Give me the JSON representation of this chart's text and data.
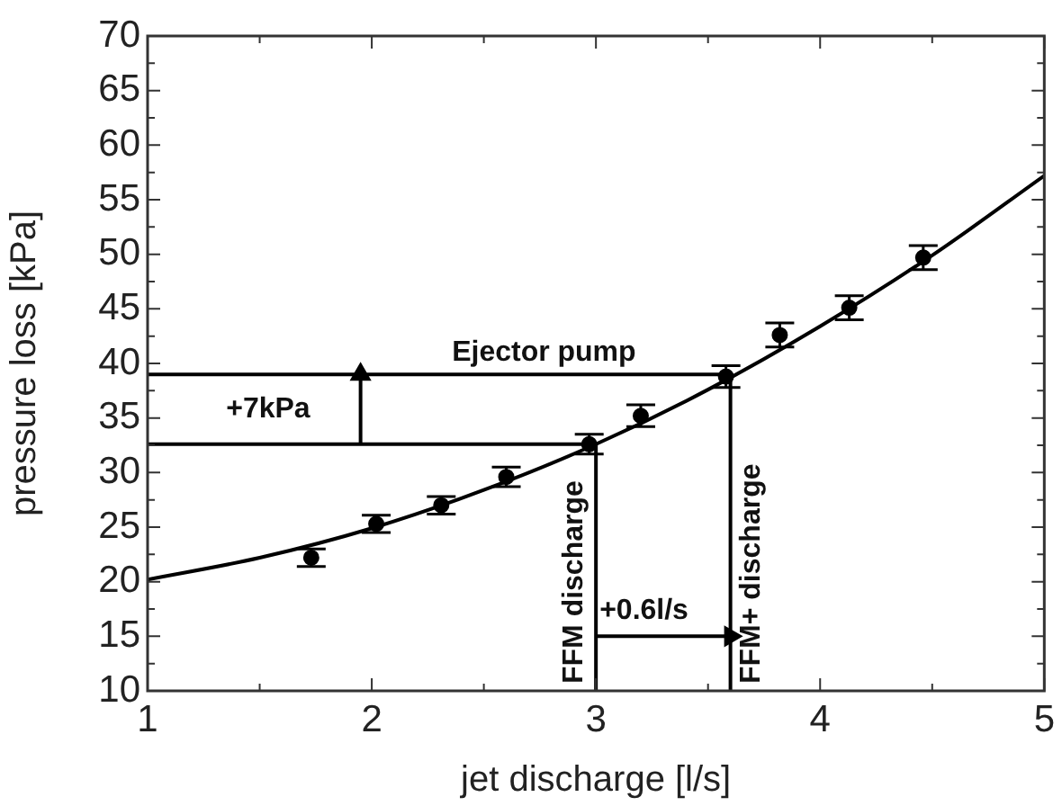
{
  "chart_data": {
    "type": "scatter",
    "xlabel": "jet discharge [l/s]",
    "ylabel": "pressure loss [kPa]",
    "xlim": [
      1,
      5
    ],
    "ylim": [
      10,
      70
    ],
    "xticks": [
      1,
      {
        "value": 1.5,
        "label": null
      },
      2,
      {
        "value": 2.5,
        "label": null
      },
      3,
      {
        "value": 3.5,
        "label": null
      },
      4,
      {
        "value": 4.5,
        "label": null
      },
      5
    ],
    "yticks": [
      10,
      {
        "value": 12.5,
        "label": null
      },
      15,
      {
        "value": 17.5,
        "label": null
      },
      20,
      {
        "value": 22.5,
        "label": null
      },
      25,
      {
        "value": 27.5,
        "label": null
      },
      30,
      {
        "value": 32.5,
        "label": null
      },
      35,
      {
        "value": 37.5,
        "label": null
      },
      40,
      {
        "value": 42.5,
        "label": null
      },
      45,
      {
        "value": 47.5,
        "label": null
      },
      50,
      {
        "value": 52.5,
        "label": null
      },
      55,
      {
        "value": 57.5,
        "label": null
      },
      60,
      {
        "value": 62.5,
        "label": null
      },
      65,
      {
        "value": 67.5,
        "label": null
      },
      70
    ],
    "grid": false,
    "legend": false,
    "series": [
      {
        "color": "#000000",
        "marker": "circle",
        "x": [
          1.73,
          2.02,
          2.31,
          2.6,
          2.97,
          3.2,
          3.58,
          3.82,
          4.13,
          4.46
        ],
        "values": [
          22.2,
          25.3,
          27.0,
          29.6,
          32.6,
          35.2,
          38.8,
          42.6,
          45.1,
          49.7
        ],
        "errors": [
          0.8,
          0.8,
          0.8,
          0.9,
          0.9,
          1.0,
          1.0,
          1.1,
          1.1,
          1.1
        ]
      },
      {
        "type": "line",
        "color": "#000000",
        "marker": "none",
        "x": [
          1,
          1.5,
          2,
          2.5,
          3,
          3.5,
          4,
          4.5,
          5
        ],
        "values": [
          20.2,
          22.2,
          24.9,
          28.4,
          32.6,
          37.6,
          43.4,
          49.9,
          57.2
        ]
      },
      {
        "type": "line",
        "color": "#000000",
        "marker": "none",
        "name": "Ejector pump",
        "x": [
          1,
          3.6
        ],
        "values": [
          39,
          39
        ]
      },
      {
        "type": "line",
        "color": "#000000",
        "marker": "none",
        "x": [
          1,
          3
        ],
        "values": [
          32.6,
          32.6
        ]
      },
      {
        "type": "line",
        "color": "#000000",
        "marker": "none",
        "name": "FFM discharge",
        "x": [
          3,
          3
        ],
        "values": [
          10,
          32.6
        ]
      },
      {
        "type": "line",
        "color": "#000000",
        "marker": "none",
        "name": "FFM+ discharge",
        "x": [
          3.6,
          3.6
        ],
        "values": [
          10,
          39
        ]
      },
      {
        "type": "line",
        "color": "#000000",
        "marker": "triangle",
        "x": [
          1.95,
          1.95
        ],
        "values": [
          32.6,
          39
        ]
      },
      {
        "type": "line",
        "color": "#000000",
        "marker": "triangle",
        "x": [
          3,
          3.6
        ],
        "values": [
          15,
          15
        ]
      }
    ],
    "annotations": [
      "+7kPa",
      "+0.6l/s"
    ]
  }
}
